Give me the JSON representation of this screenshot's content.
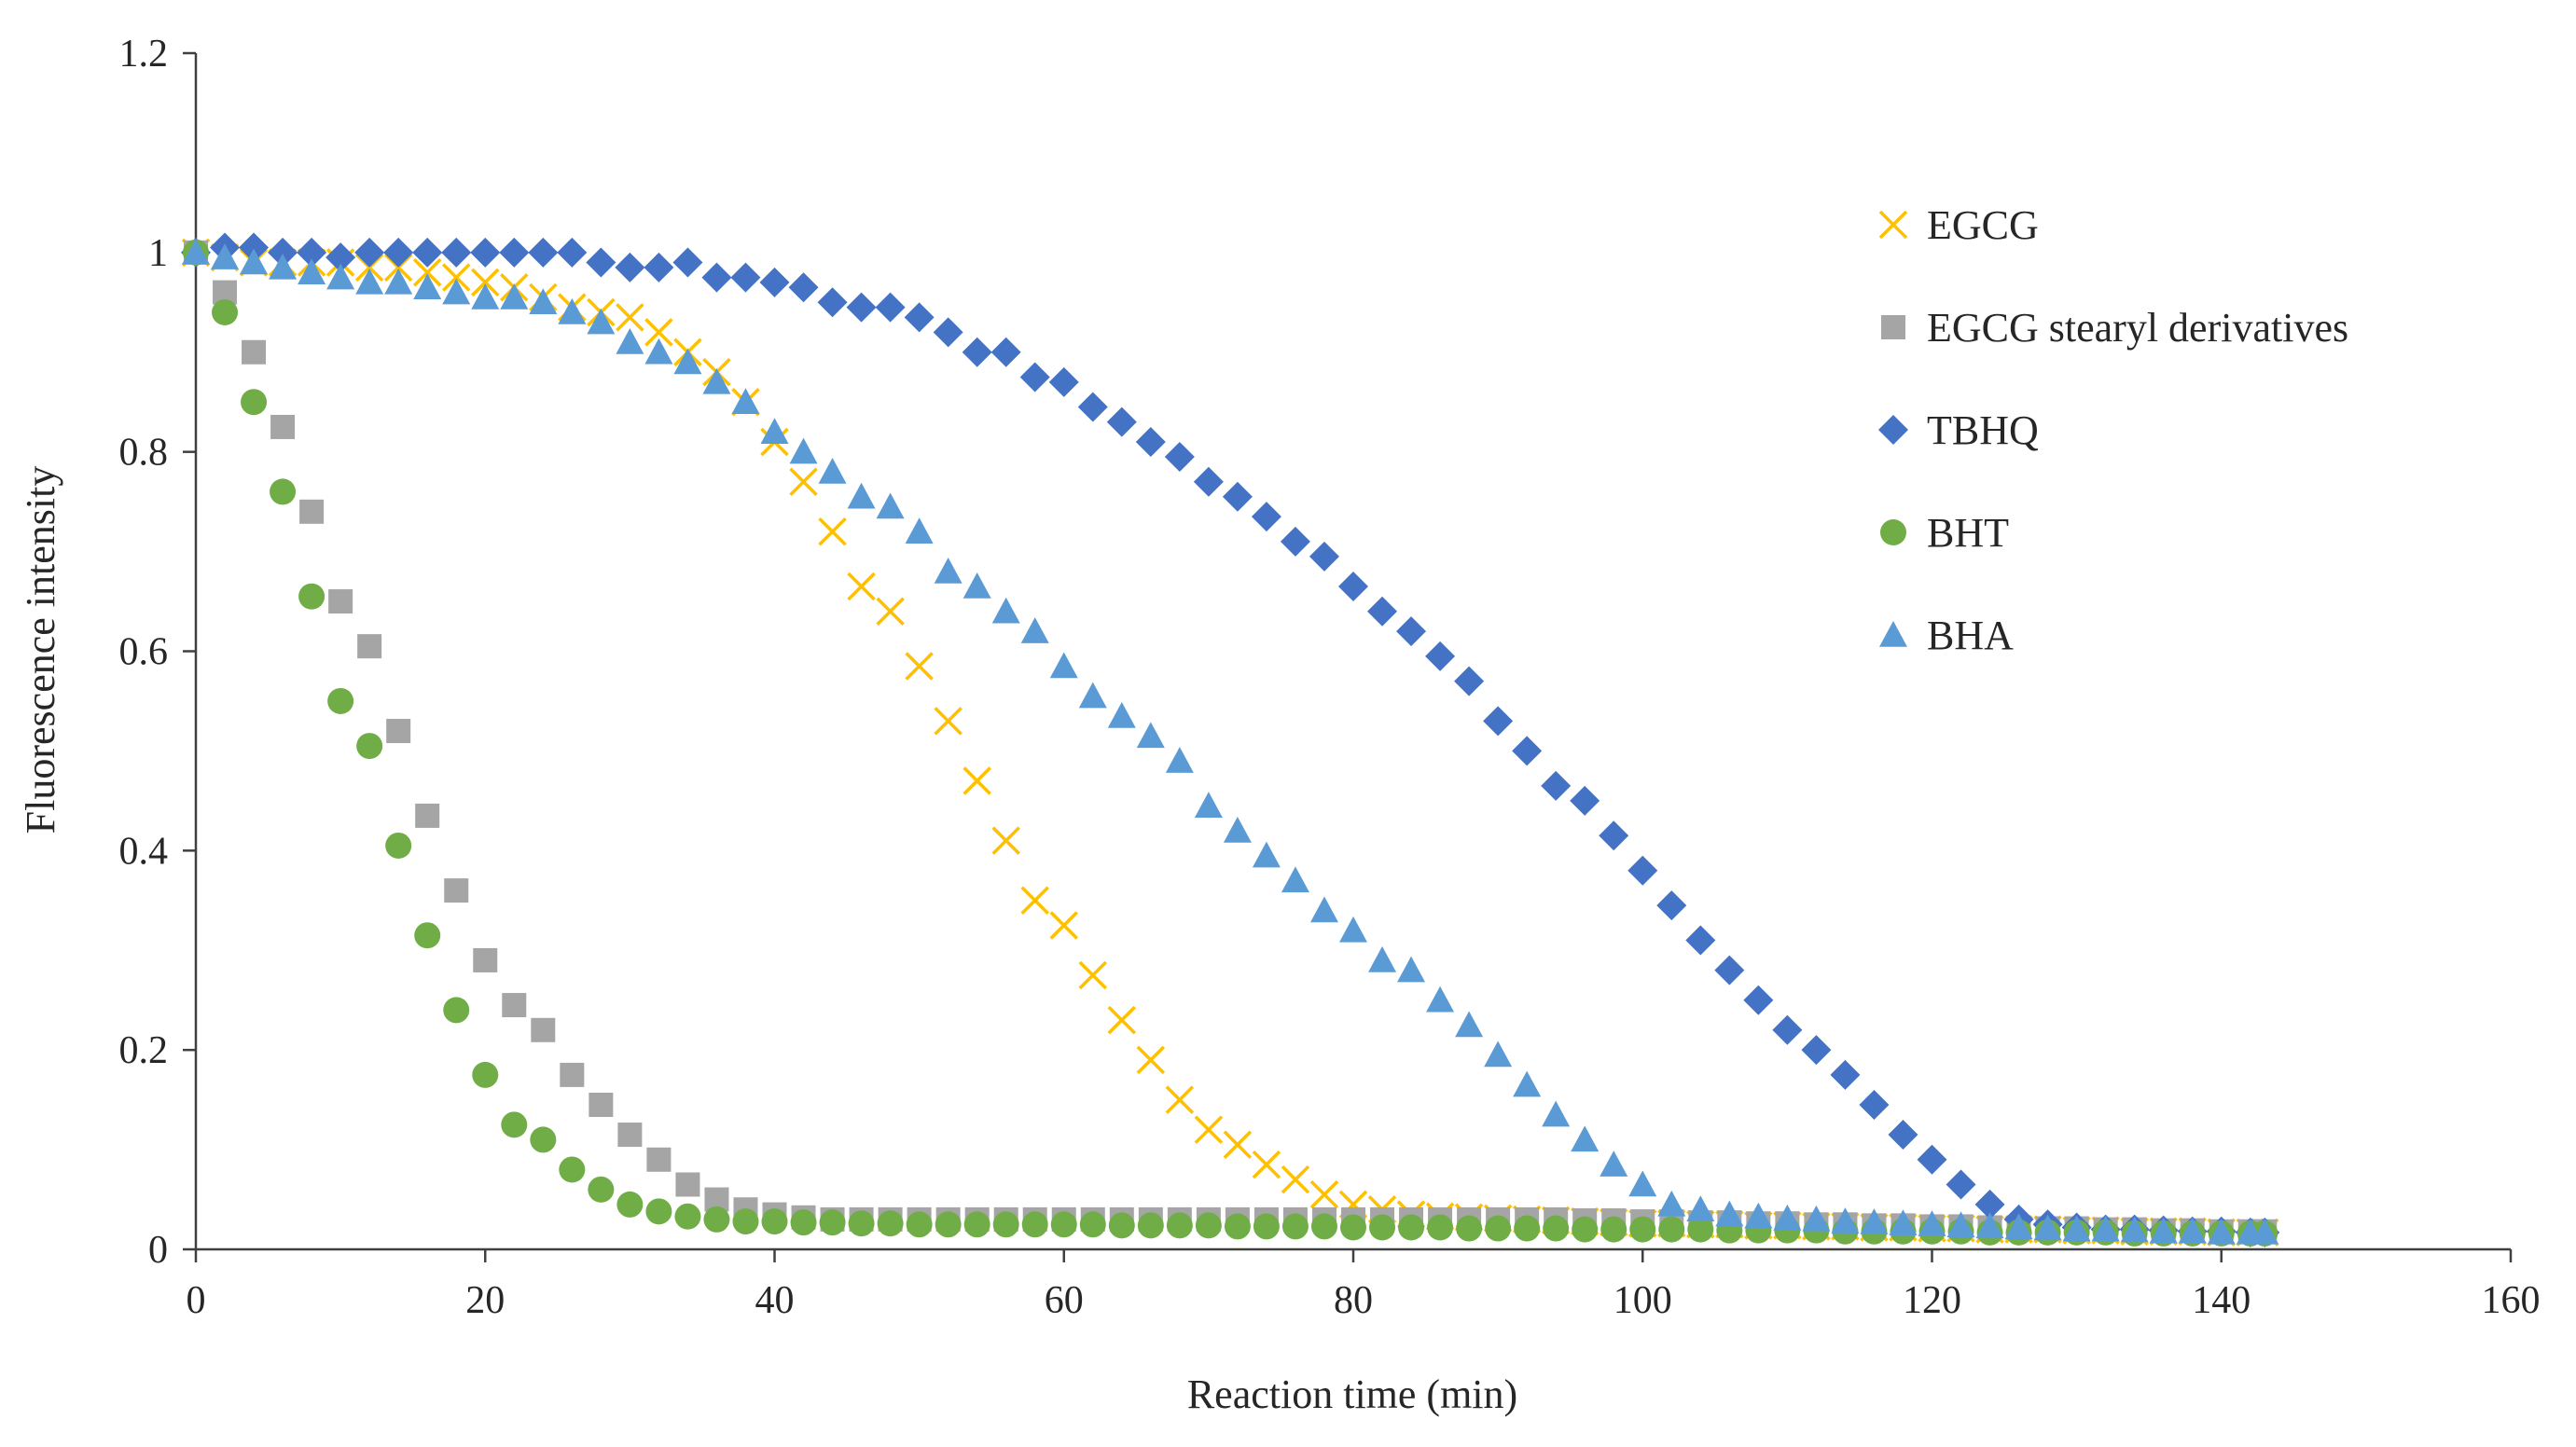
{
  "chart_data": {
    "type": "scatter",
    "title": "",
    "xlabel": "Reaction time (min)",
    "ylabel": "Fluorescence intensity",
    "xlim": [
      0,
      160
    ],
    "ylim": [
      0,
      1.2
    ],
    "xticks": [
      "0",
      "20",
      "40",
      "60",
      "80",
      "100",
      "120",
      "140",
      "160"
    ],
    "yticks": [
      "0",
      "0.2",
      "0.4",
      "0.6",
      "0.8",
      "1",
      "1.2"
    ],
    "grid": false,
    "legend_position": "right",
    "series": [
      {
        "name": "EGCG",
        "marker": "x",
        "color": "#FFC000",
        "x": [
          0,
          2,
          4,
          6,
          8,
          10,
          12,
          14,
          16,
          18,
          20,
          22,
          24,
          26,
          28,
          30,
          32,
          34,
          36,
          38,
          40,
          42,
          44,
          46,
          48,
          50,
          52,
          54,
          56,
          58,
          60,
          62,
          64,
          66,
          68,
          70,
          72,
          74,
          76,
          78,
          80,
          82,
          84,
          86,
          88,
          90,
          92,
          94,
          96,
          98,
          100,
          102,
          104,
          106,
          108,
          110,
          112,
          114,
          116,
          118,
          120,
          122,
          124,
          126,
          128,
          130,
          132,
          134,
          136,
          138,
          140,
          142,
          143
        ],
        "y": [
          1.0,
          0.995,
          0.99,
          0.99,
          0.99,
          0.99,
          0.985,
          0.985,
          0.98,
          0.975,
          0.97,
          0.965,
          0.955,
          0.945,
          0.94,
          0.935,
          0.92,
          0.9,
          0.88,
          0.85,
          0.81,
          0.77,
          0.72,
          0.665,
          0.64,
          0.585,
          0.53,
          0.47,
          0.41,
          0.35,
          0.325,
          0.275,
          0.23,
          0.19,
          0.15,
          0.12,
          0.105,
          0.085,
          0.07,
          0.055,
          0.045,
          0.04,
          0.035,
          0.033,
          0.032,
          0.031,
          0.03,
          0.029,
          0.028,
          0.027,
          0.026,
          0.026,
          0.025,
          0.025,
          0.024,
          0.024,
          0.023,
          0.023,
          0.022,
          0.022,
          0.021,
          0.021,
          0.02,
          0.02,
          0.02,
          0.019,
          0.019,
          0.018,
          0.018,
          0.018,
          0.017,
          0.017,
          0.017
        ]
      },
      {
        "name": "EGCG stearyl derivatives",
        "marker": "square",
        "color": "#A5A5A5",
        "x": [
          0,
          2,
          4,
          6,
          8,
          10,
          12,
          14,
          16,
          18,
          20,
          22,
          24,
          26,
          28,
          30,
          32,
          34,
          36,
          38,
          40,
          42,
          44,
          46,
          48,
          50,
          52,
          54,
          56,
          58,
          60,
          62,
          64,
          66,
          68,
          70,
          72,
          74,
          76,
          78,
          80,
          82,
          84,
          86,
          88,
          90,
          92,
          94,
          96,
          98,
          100,
          102,
          104,
          106,
          108,
          110,
          112,
          114,
          116,
          118,
          120,
          122,
          124,
          126,
          128,
          130,
          132,
          134,
          136,
          138,
          140,
          142,
          143
        ],
        "y": [
          1.0,
          0.96,
          0.9,
          0.825,
          0.74,
          0.65,
          0.605,
          0.52,
          0.435,
          0.36,
          0.29,
          0.245,
          0.22,
          0.175,
          0.145,
          0.115,
          0.09,
          0.065,
          0.05,
          0.04,
          0.035,
          0.032,
          0.03,
          0.03,
          0.03,
          0.03,
          0.03,
          0.03,
          0.03,
          0.03,
          0.03,
          0.03,
          0.03,
          0.03,
          0.03,
          0.03,
          0.03,
          0.03,
          0.03,
          0.03,
          0.03,
          0.03,
          0.03,
          0.03,
          0.03,
          0.03,
          0.03,
          0.03,
          0.029,
          0.029,
          0.028,
          0.028,
          0.027,
          0.027,
          0.026,
          0.026,
          0.025,
          0.025,
          0.024,
          0.024,
          0.023,
          0.023,
          0.022,
          0.022,
          0.021,
          0.021,
          0.02,
          0.02,
          0.019,
          0.019,
          0.018,
          0.018,
          0.018
        ]
      },
      {
        "name": "TBHQ",
        "marker": "diamond",
        "color": "#4472C4",
        "x": [
          0,
          2,
          4,
          6,
          8,
          10,
          12,
          14,
          16,
          18,
          20,
          22,
          24,
          26,
          28,
          30,
          32,
          34,
          36,
          38,
          40,
          42,
          44,
          46,
          48,
          50,
          52,
          54,
          56,
          58,
          60,
          62,
          64,
          66,
          68,
          70,
          72,
          74,
          76,
          78,
          80,
          82,
          84,
          86,
          88,
          90,
          92,
          94,
          96,
          98,
          100,
          102,
          104,
          106,
          108,
          110,
          112,
          114,
          116,
          118,
          120,
          122,
          124,
          126,
          128,
          130,
          132,
          134,
          136,
          138,
          140,
          142,
          143
        ],
        "y": [
          1.0,
          1.005,
          1.005,
          1.0,
          1.0,
          0.995,
          1.0,
          1.0,
          1.0,
          1.0,
          1.0,
          1.0,
          1.0,
          1.0,
          0.99,
          0.985,
          0.985,
          0.99,
          0.975,
          0.975,
          0.97,
          0.965,
          0.95,
          0.945,
          0.945,
          0.935,
          0.92,
          0.9,
          0.9,
          0.875,
          0.87,
          0.845,
          0.83,
          0.81,
          0.795,
          0.77,
          0.755,
          0.735,
          0.71,
          0.695,
          0.665,
          0.64,
          0.62,
          0.595,
          0.57,
          0.53,
          0.5,
          0.465,
          0.45,
          0.415,
          0.38,
          0.345,
          0.31,
          0.28,
          0.25,
          0.22,
          0.2,
          0.175,
          0.145,
          0.115,
          0.09,
          0.065,
          0.045,
          0.03,
          0.025,
          0.022,
          0.02,
          0.02,
          0.019,
          0.018,
          0.018,
          0.017,
          0.017
        ]
      },
      {
        "name": "BHT",
        "marker": "circle",
        "color": "#70AD47",
        "x": [
          0,
          2,
          4,
          6,
          8,
          10,
          12,
          14,
          16,
          18,
          20,
          22,
          24,
          26,
          28,
          30,
          32,
          34,
          36,
          38,
          40,
          42,
          44,
          46,
          48,
          50,
          52,
          54,
          56,
          58,
          60,
          62,
          64,
          66,
          68,
          70,
          72,
          74,
          76,
          78,
          80,
          82,
          84,
          86,
          88,
          90,
          92,
          94,
          96,
          98,
          100,
          102,
          104,
          106,
          108,
          110,
          112,
          114,
          116,
          118,
          120,
          122,
          124,
          126,
          128,
          130,
          132,
          134,
          136,
          138,
          140,
          142,
          143
        ],
        "y": [
          1.0,
          0.94,
          0.85,
          0.76,
          0.655,
          0.55,
          0.505,
          0.405,
          0.315,
          0.24,
          0.175,
          0.125,
          0.11,
          0.08,
          0.06,
          0.045,
          0.038,
          0.033,
          0.03,
          0.028,
          0.028,
          0.027,
          0.027,
          0.026,
          0.026,
          0.025,
          0.025,
          0.025,
          0.025,
          0.025,
          0.025,
          0.025,
          0.024,
          0.024,
          0.024,
          0.024,
          0.023,
          0.023,
          0.023,
          0.023,
          0.022,
          0.022,
          0.022,
          0.022,
          0.021,
          0.021,
          0.021,
          0.021,
          0.02,
          0.02,
          0.02,
          0.02,
          0.02,
          0.019,
          0.019,
          0.019,
          0.019,
          0.018,
          0.018,
          0.018,
          0.018,
          0.018,
          0.017,
          0.017,
          0.017,
          0.017,
          0.017,
          0.016,
          0.016,
          0.016,
          0.016,
          0.016,
          0.016
        ]
      },
      {
        "name": "BHA",
        "marker": "triangle",
        "color": "#5B9BD5",
        "x": [
          0,
          2,
          4,
          6,
          8,
          10,
          12,
          14,
          16,
          18,
          20,
          22,
          24,
          26,
          28,
          30,
          32,
          34,
          36,
          38,
          40,
          42,
          44,
          46,
          48,
          50,
          52,
          54,
          56,
          58,
          60,
          62,
          64,
          66,
          68,
          70,
          72,
          74,
          76,
          78,
          80,
          82,
          84,
          86,
          88,
          90,
          92,
          94,
          96,
          98,
          100,
          102,
          104,
          106,
          108,
          110,
          112,
          114,
          116,
          118,
          120,
          122,
          124,
          126,
          128,
          130,
          132,
          134,
          136,
          138,
          140,
          142,
          143
        ],
        "y": [
          1.0,
          0.995,
          0.99,
          0.985,
          0.98,
          0.975,
          0.97,
          0.97,
          0.965,
          0.96,
          0.955,
          0.955,
          0.95,
          0.94,
          0.93,
          0.91,
          0.9,
          0.89,
          0.87,
          0.85,
          0.82,
          0.8,
          0.78,
          0.755,
          0.745,
          0.72,
          0.68,
          0.665,
          0.64,
          0.62,
          0.585,
          0.555,
          0.535,
          0.515,
          0.49,
          0.445,
          0.42,
          0.395,
          0.37,
          0.34,
          0.32,
          0.29,
          0.28,
          0.25,
          0.225,
          0.195,
          0.165,
          0.135,
          0.11,
          0.085,
          0.065,
          0.045,
          0.04,
          0.035,
          0.033,
          0.031,
          0.03,
          0.028,
          0.027,
          0.026,
          0.025,
          0.024,
          0.023,
          0.022,
          0.021,
          0.02,
          0.02,
          0.019,
          0.018,
          0.018,
          0.017,
          0.017,
          0.017
        ]
      }
    ]
  }
}
